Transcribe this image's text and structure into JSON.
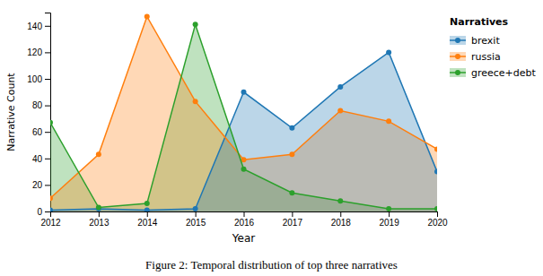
{
  "chart_data": {
    "type": "area",
    "x_label": "Year",
    "y_label": "Narrative Count",
    "caption": "Figure 2:  Temporal distribution of top three narratives",
    "legend_title": "Narratives",
    "legend": "right",
    "grid": false,
    "marker": "circle",
    "x": [
      2012,
      2013,
      2014,
      2015,
      2016,
      2017,
      2018,
      2019,
      2020
    ],
    "xlim": [
      2012,
      2020
    ],
    "xticks": [
      2012,
      2013,
      2014,
      2015,
      2016,
      2017,
      2018,
      2019,
      2020
    ],
    "ylim": [
      0,
      150
    ],
    "yticks": [
      0,
      20,
      40,
      60,
      80,
      100,
      120,
      140
    ],
    "series": [
      {
        "name": "brexit",
        "values": [
          1,
          2,
          1,
          2,
          90,
          63,
          94,
          120,
          30
        ]
      },
      {
        "name": "russia",
        "values": [
          10,
          43,
          147,
          83,
          39,
          43,
          76,
          68,
          47
        ]
      },
      {
        "name": "greece+debt",
        "values": [
          67,
          3,
          6,
          141,
          32,
          14,
          8,
          2,
          2
        ]
      }
    ]
  }
}
